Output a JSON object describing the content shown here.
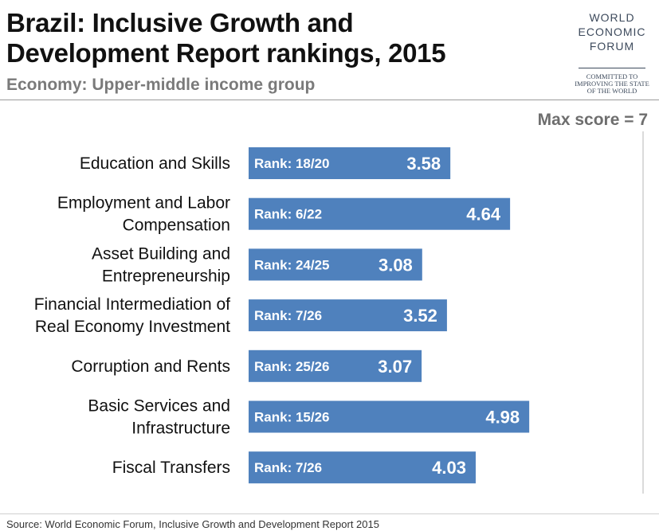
{
  "header": {
    "title_line1": "Brazil: Inclusive Growth and",
    "title_line2": "Development Report rankings, 2015",
    "subtitle": "Economy: Upper-middle income group"
  },
  "logo": {
    "line1": "WORLD",
    "line2": "ECONOMIC",
    "line3": "FORUM",
    "tagline1": "COMMITTED TO",
    "tagline2": "IMPROVING THE STATE",
    "tagline3": "OF THE WORLD",
    "color": "#3d4a5c"
  },
  "max_note": "Max score = 7",
  "source": "Source: World Economic Forum, Inclusive Growth and Development Report 2015",
  "chart_data": {
    "type": "bar",
    "orientation": "horizontal",
    "title": "Brazil: Inclusive Growth and Development Report rankings, 2015",
    "subtitle": "Economy: Upper-middle income group",
    "xlim": [
      0,
      7
    ],
    "bar_color": "#4f81bd",
    "categories": [
      [
        "Education and Skills"
      ],
      [
        "Employment and Labor",
        "Compensation"
      ],
      [
        "Asset Building and",
        "Entrepreneurship"
      ],
      [
        "Financial Intermediation of",
        "Real Economy Investment"
      ],
      [
        "Corruption and Rents"
      ],
      [
        "Basic Services and",
        "Infrastructure"
      ],
      [
        "Fiscal Transfers"
      ]
    ],
    "values": [
      3.58,
      4.64,
      3.08,
      3.52,
      3.07,
      4.98,
      4.03
    ],
    "value_labels": [
      "3.58",
      "4.64",
      "3.08",
      "3.52",
      "3.07",
      "4.98",
      "4.03"
    ],
    "rank_labels": [
      "Rank: 18/20",
      "Rank: 6/22",
      "Rank: 24/25",
      "Rank: 7/26",
      "Rank: 25/26",
      "Rank: 15/26",
      "Rank: 7/26"
    ]
  }
}
